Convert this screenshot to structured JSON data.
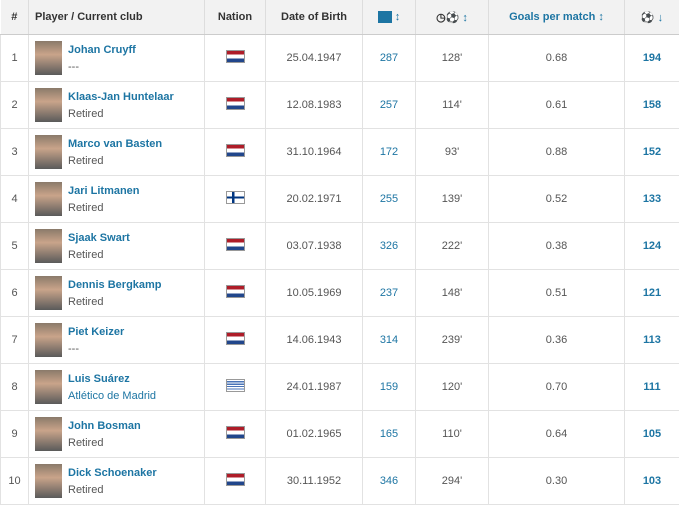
{
  "headers": {
    "rank": "#",
    "player": "Player / Current club",
    "nation": "Nation",
    "dob": "Date of Birth",
    "apps_icon": "pitch-icon",
    "apps_sort": "↕",
    "minutes_icon": "clock-ball-icon",
    "minutes_sort": "↕",
    "gpm": "Goals per match ↕",
    "goals_icon": "ball-icon",
    "goals_sort": "↓"
  },
  "accent": "#1d75a3",
  "rows": [
    {
      "rank": "1",
      "name": "Johan Cruyff",
      "club": "---",
      "nation": "nl",
      "dob": "25.04.1947",
      "apps": "287",
      "min": "128'",
      "gpm": "0.68",
      "goals": "194"
    },
    {
      "rank": "2",
      "name": "Klaas-Jan Huntelaar",
      "club": "Retired",
      "nation": "nl",
      "dob": "12.08.1983",
      "apps": "257",
      "min": "114'",
      "gpm": "0.61",
      "goals": "158"
    },
    {
      "rank": "3",
      "name": "Marco van Basten",
      "club": "Retired",
      "nation": "nl",
      "dob": "31.10.1964",
      "apps": "172",
      "min": "93'",
      "gpm": "0.88",
      "goals": "152"
    },
    {
      "rank": "4",
      "name": "Jari Litmanen",
      "club": "Retired",
      "nation": "fi",
      "dob": "20.02.1971",
      "apps": "255",
      "min": "139'",
      "gpm": "0.52",
      "goals": "133"
    },
    {
      "rank": "5",
      "name": "Sjaak Swart",
      "club": "Retired",
      "nation": "nl",
      "dob": "03.07.1938",
      "apps": "326",
      "min": "222'",
      "gpm": "0.38",
      "goals": "124"
    },
    {
      "rank": "6",
      "name": "Dennis Bergkamp",
      "club": "Retired",
      "nation": "nl",
      "dob": "10.05.1969",
      "apps": "237",
      "min": "148'",
      "gpm": "0.51",
      "goals": "121"
    },
    {
      "rank": "7",
      "name": "Piet Keizer",
      "club": "---",
      "nation": "nl",
      "dob": "14.06.1943",
      "apps": "314",
      "min": "239'",
      "gpm": "0.36",
      "goals": "113"
    },
    {
      "rank": "8",
      "name": "Luis Suárez",
      "club": "Atlético de Madrid",
      "club_link": true,
      "nation": "uy",
      "dob": "24.01.1987",
      "apps": "159",
      "min": "120'",
      "gpm": "0.70",
      "goals": "111"
    },
    {
      "rank": "9",
      "name": "John Bosman",
      "club": "Retired",
      "nation": "nl",
      "dob": "01.02.1965",
      "apps": "165",
      "min": "110'",
      "gpm": "0.64",
      "goals": "105"
    },
    {
      "rank": "10",
      "name": "Dick Schoenaker",
      "club": "Retired",
      "nation": "nl",
      "dob": "30.11.1952",
      "apps": "346",
      "min": "294'",
      "gpm": "0.30",
      "goals": "103"
    }
  ]
}
